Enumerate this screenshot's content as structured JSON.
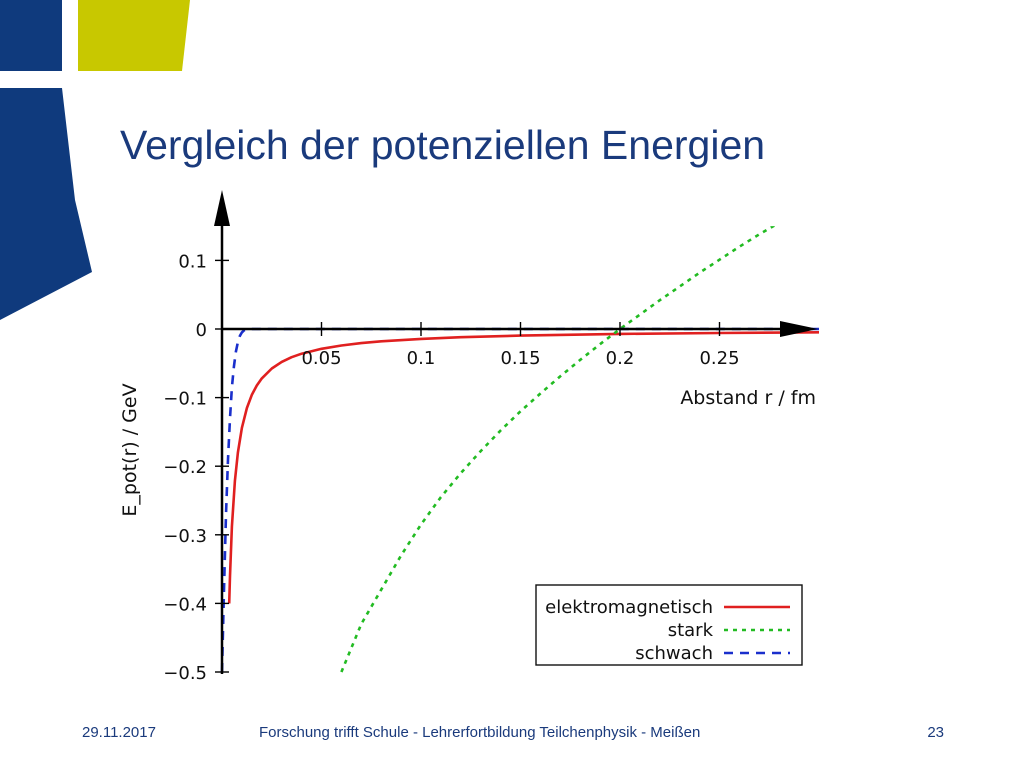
{
  "slide": {
    "title": "Vergleich der potenziellen Energien",
    "footer_date": "29.11.2017",
    "footer_title": "Forschung trifft Schule - Lehrerfortbildung Teilchenphysik - Meißen",
    "page_number": "23"
  },
  "colors": {
    "title": "#1a3a7c",
    "deco_blue": "#0f3a7d",
    "deco_yellow": "#c8c800"
  },
  "chart_data": {
    "type": "line",
    "xlabel": "Abstand r / fm",
    "ylabel": "E_pot(r) / GeV",
    "xlim": [
      0,
      0.3
    ],
    "ylim": [
      -0.5,
      0.15
    ],
    "x_ticks": [
      0.05,
      0.1,
      0.15,
      0.2,
      0.25
    ],
    "x_tick_labels": [
      "0.05",
      "0.1",
      "0.15",
      "0.2",
      "0.25"
    ],
    "y_ticks": [
      0.1,
      0,
      -0.1,
      -0.2,
      -0.3,
      -0.4,
      -0.5
    ],
    "y_tick_labels": [
      "0.1",
      "0",
      "−0.1",
      "−0.2",
      "−0.3",
      "−0.4",
      "−0.5"
    ],
    "legend_position": "bottom-right",
    "series": [
      {
        "name": "elektromagnetisch",
        "color": "#e02020",
        "dash": "solid",
        "x": [
          0.0036,
          0.004,
          0.005,
          0.0065,
          0.008,
          0.01,
          0.0125,
          0.015,
          0.0175,
          0.02,
          0.025,
          0.03,
          0.035,
          0.04,
          0.05,
          0.06,
          0.07,
          0.08,
          0.1,
          0.12,
          0.15,
          0.2,
          0.25,
          0.3
        ],
        "y": [
          -0.4,
          -0.36,
          -0.288,
          -0.2215,
          -0.18,
          -0.144,
          -0.1152,
          -0.096,
          -0.0823,
          -0.072,
          -0.0576,
          -0.048,
          -0.0411,
          -0.036,
          -0.0288,
          -0.024,
          -0.0206,
          -0.018,
          -0.0144,
          -0.012,
          -0.0096,
          -0.0072,
          -0.0058,
          -0.0048
        ]
      },
      {
        "name": "stark",
        "color": "#22bb22",
        "dash": "dotted",
        "x": [
          0.06,
          0.07,
          0.08,
          0.09,
          0.1,
          0.11,
          0.12,
          0.13,
          0.14,
          0.15,
          0.16,
          0.17,
          0.18,
          0.19,
          0.2,
          0.21,
          0.22,
          0.23,
          0.24,
          0.25,
          0.26,
          0.27,
          0.28
        ],
        "y": [
          -0.5,
          -0.43,
          -0.38,
          -0.33,
          -0.285,
          -0.245,
          -0.21,
          -0.178,
          -0.148,
          -0.12,
          -0.094,
          -0.069,
          -0.045,
          -0.022,
          0.0,
          0.021,
          0.042,
          0.062,
          0.082,
          0.101,
          0.12,
          0.138,
          0.155
        ]
      },
      {
        "name": "schwach",
        "color": "#1a2fcc",
        "dash": "dashed",
        "x": [
          0.0,
          0.001,
          0.002,
          0.003,
          0.004,
          0.005,
          0.006,
          0.007,
          0.008,
          0.009,
          0.01,
          0.011,
          0.012,
          0.015,
          0.02,
          0.05,
          0.1,
          0.15,
          0.2,
          0.25,
          0.3
        ],
        "y": [
          -0.5,
          -0.38,
          -0.27,
          -0.19,
          -0.13,
          -0.085,
          -0.055,
          -0.033,
          -0.019,
          -0.01,
          -0.005,
          -0.002,
          -0.001,
          0,
          0,
          0,
          0,
          0,
          0,
          0,
          0
        ]
      }
    ]
  }
}
